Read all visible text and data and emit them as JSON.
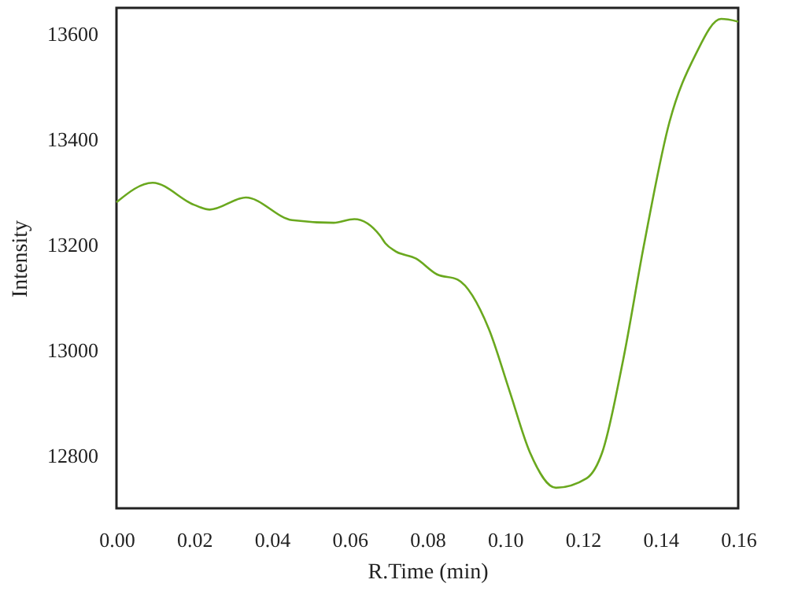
{
  "chart_data": {
    "type": "line",
    "xlabel": "R.Time (min)",
    "ylabel": "Intensity",
    "x": [
      0,
      0.0093,
      0.02,
      0.024,
      0.0333,
      0.0452,
      0.0559,
      0.0612,
      0.0678,
      0.0692,
      0.0718,
      0.0771,
      0.0825,
      0.0878,
      0.0958,
      0.1011,
      0.1064,
      0.1131,
      0.121,
      0.125,
      0.1304,
      0.1357,
      0.1423,
      0.149,
      0.1556,
      0.16
    ],
    "series": [
      {
        "color": "#6aa81e",
        "values": [
          13281,
          13318,
          13276,
          13267,
          13290,
          13247,
          13242,
          13249,
          13218,
          13203,
          13188,
          13174,
          13144,
          13134,
          13041,
          12924,
          12806,
          12739,
          12757,
          12806,
          12982,
          13198,
          13433,
          13561,
          13629,
          13624
        ]
      }
    ],
    "xlim": [
      0,
      0.16
    ],
    "xticks": [
      {
        "value": 0,
        "label": "0.00"
      },
      {
        "value": 0.02,
        "label": "0.02"
      },
      {
        "value": 0.04,
        "label": "0.04"
      },
      {
        "value": 0.06,
        "label": "0.06"
      },
      {
        "value": 0.08,
        "label": "0.08"
      },
      {
        "value": 0.1,
        "label": "0.10"
      },
      {
        "value": 0.12,
        "label": "0.12"
      },
      {
        "value": 0.14,
        "label": "0.14"
      },
      {
        "value": 0.16,
        "label": "0.16"
      }
    ],
    "ylim": [
      12700,
      13650
    ],
    "yticks": [
      12800,
      13000,
      13200,
      13400,
      13600
    ],
    "grid": false,
    "marker": "none",
    "line_style": "solid"
  }
}
